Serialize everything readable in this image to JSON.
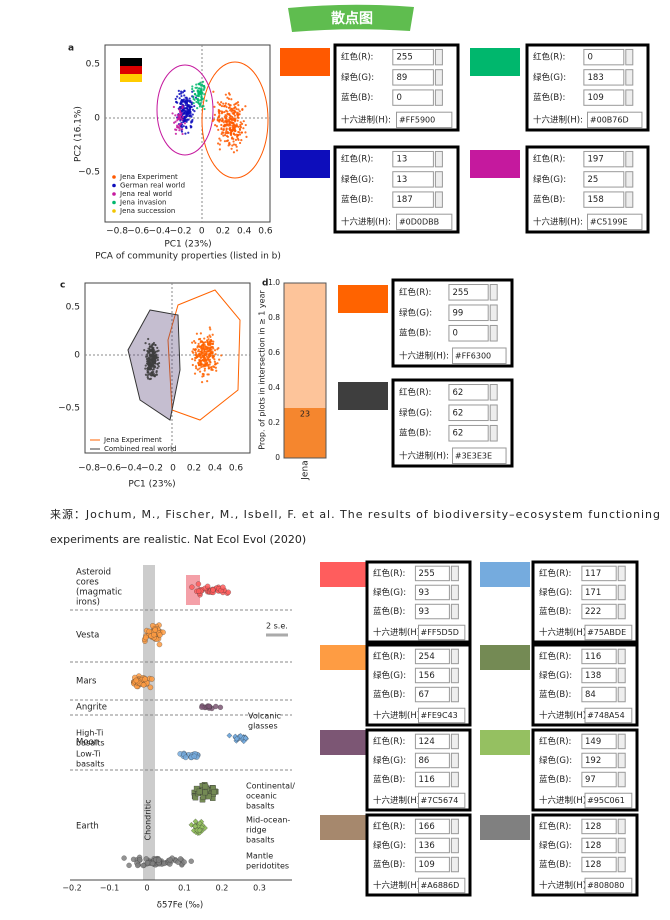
{
  "header": {
    "title": "散点图"
  },
  "labels": {
    "r": "红色(R):",
    "g": "绿色(G):",
    "b": "蓝色(B):",
    "hex": "十六进制(H):"
  },
  "figure_1": {
    "panel_a": {
      "label": "a",
      "ylabel": "PC2 (16.1%)",
      "xlabel": "PC1 (23%)",
      "caption": "PCA of community properties (listed in b)",
      "xticks": [
        "−0.8",
        "−0.6",
        "−0.4",
        "−0.2",
        "0",
        "0.2",
        "0.4",
        "0.6"
      ],
      "yticks": [
        "0.5",
        "0",
        "−0.5"
      ],
      "legend": [
        {
          "name": "Jena Experiment",
          "color": "#FF5900"
        },
        {
          "name": "German real world",
          "color": "#0D0DBB"
        },
        {
          "name": "Jena real world",
          "color": "#C5199E"
        },
        {
          "name": "Jena invasion",
          "color": "#00B76D"
        },
        {
          "name": "Jena succession",
          "color": "#F2C500"
        }
      ]
    },
    "panel_c": {
      "label": "c",
      "xlabel": "PC1 (23%)",
      "xticks": [
        "−0.8",
        "−0.6",
        "−0.4",
        "−0.2",
        "0",
        "0.2",
        "0.4",
        "0.6"
      ],
      "yticks": [
        "0.5",
        "0",
        "−0.5"
      ],
      "legend": [
        {
          "name": "Jena Experiment",
          "color": "#FF6300"
        },
        {
          "name": "Combined real world",
          "color": "#3E3E3E"
        }
      ]
    },
    "panel_d": {
      "label": "d",
      "ylabel": "Prop. of plots in intersection in ≥ 1 year",
      "yticks": [
        "0",
        "0.2",
        "0.4",
        "0.6",
        "0.8",
        "1.0"
      ],
      "category": "Jena",
      "bar_label": "23"
    }
  },
  "swatches_1": [
    {
      "r": "255",
      "g": "89",
      "b": "0",
      "hex": "#FF5900"
    },
    {
      "r": "0",
      "g": "183",
      "b": "109",
      "hex": "#00B76D"
    },
    {
      "r": "13",
      "g": "13",
      "b": "187",
      "hex": "#0D0DBB"
    },
    {
      "r": "197",
      "g": "25",
      "b": "158",
      "hex": "#C5199E"
    }
  ],
  "swatches_2": [
    {
      "r": "255",
      "g": "99",
      "b": "0",
      "hex": "#FF6300"
    },
    {
      "r": "62",
      "g": "62",
      "b": "62",
      "hex": "#3E3E3E"
    }
  ],
  "source": {
    "lines": [
      "来源：Jochum, M., Fischer, M., Isbell, F. et al. The results of biodiversity–ecosystem functioning",
      "experiments are realistic. Nat Ecol Evol (2020)"
    ]
  },
  "figure_2": {
    "xlabel": "δ57Fe (‰)",
    "xticks": [
      "−0.2",
      "−0.1",
      "0",
      "0.1",
      "0.2",
      "0.3"
    ],
    "groups": [
      {
        "lines": [
          "Asteroid",
          "cores",
          "(magmatic",
          "irons)"
        ]
      },
      {
        "lines": [
          "Vesta"
        ]
      },
      {
        "lines": [
          "Mars"
        ]
      },
      {
        "lines": [
          "Angrite"
        ]
      },
      {
        "lines": [
          "Moon"
        ]
      },
      {
        "lines": [
          "Earth"
        ]
      }
    ],
    "annotations": [
      {
        "lines": [
          "High-Ti",
          "basalts"
        ]
      },
      {
        "lines": [
          "Low-Ti",
          "basalts"
        ]
      },
      {
        "lines": [
          "Volcanic",
          "glasses"
        ]
      },
      {
        "lines": [
          "Continental/",
          "oceanic",
          "basalts"
        ]
      },
      {
        "lines": [
          "Mid-ocean-",
          "ridge",
          "basalts"
        ]
      },
      {
        "lines": [
          "Mantle",
          "peridotites"
        ]
      },
      {
        "lines": [
          "Chondritic"
        ]
      },
      {
        "lines": [
          "2 s.e."
        ]
      }
    ]
  },
  "swatches_3": [
    {
      "r": "255",
      "g": "93",
      "b": "93",
      "hex": "#FF5D5D"
    },
    {
      "r": "117",
      "g": "171",
      "b": "222",
      "hex": "#75ABDE"
    },
    {
      "r": "254",
      "g": "156",
      "b": "67",
      "hex": "#FE9C43"
    },
    {
      "r": "116",
      "g": "138",
      "b": "84",
      "hex": "#748A54"
    },
    {
      "r": "124",
      "g": "86",
      "b": "116",
      "hex": "#7C5674"
    },
    {
      "r": "149",
      "g": "192",
      "b": "97",
      "hex": "#95C061"
    },
    {
      "r": "166",
      "g": "136",
      "b": "109",
      "hex": "#A6886D"
    },
    {
      "r": "128",
      "g": "128",
      "b": "128",
      "hex": "#808080"
    }
  ]
}
